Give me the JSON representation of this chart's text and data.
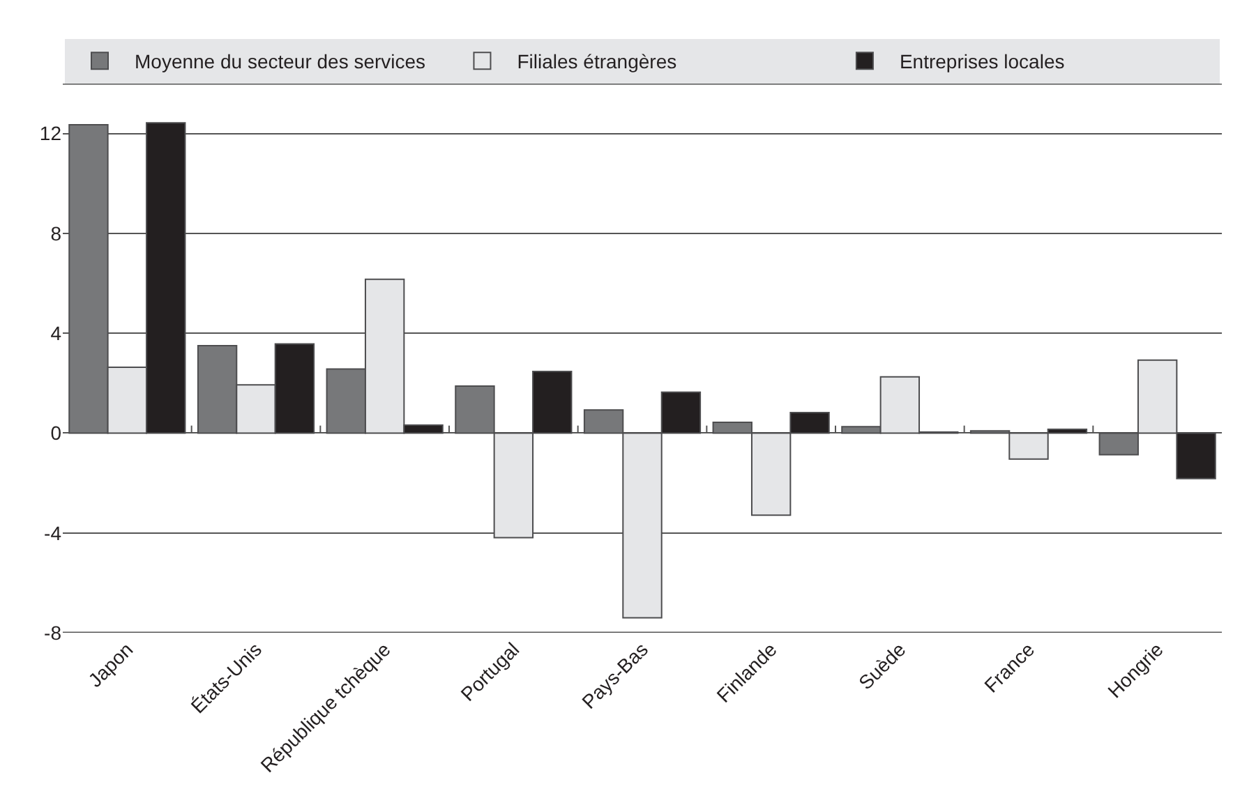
{
  "chart_data": {
    "type": "bar",
    "categories": [
      "Japon",
      "États-Unis",
      "République tchèque",
      "Portugal",
      "Pays-Bas",
      "Finlande",
      "Suède",
      "France",
      "Hongrie"
    ],
    "series": [
      {
        "name": "Moyenne du secteur des services",
        "color": "#77787a",
        "values": [
          12.35,
          3.5,
          2.57,
          1.88,
          0.93,
          0.43,
          0.26,
          0.09,
          -0.87
        ]
      },
      {
        "name": "Filiales étrangères",
        "color": "#e5e6e8",
        "values": [
          2.64,
          1.93,
          6.16,
          -4.19,
          -7.4,
          -3.29,
          2.25,
          -1.04,
          2.92
        ]
      },
      {
        "name": "Entreprises locales",
        "color": "#231f20",
        "values": [
          12.43,
          3.57,
          0.32,
          2.47,
          1.64,
          0.82,
          0.04,
          0.15,
          -1.82
        ]
      }
    ],
    "ylim": [
      -8,
      14
    ],
    "yticks": [
      -8,
      -4,
      0,
      4,
      8,
      12,
      {
        "value": 14,
        "label": null
      }
    ],
    "grid": "y",
    "legend": "top"
  }
}
